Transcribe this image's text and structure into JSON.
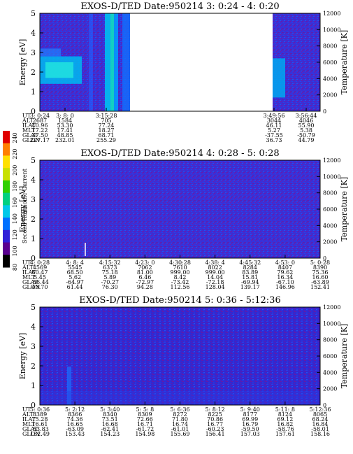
{
  "chart_data": [
    {
      "type": "heatmap",
      "title": "EXOS-D/TED   Date:950214  3: 0:24 - 4: 0:20",
      "ylabel": "Energy [eV]",
      "y2label": "Temperature [K]",
      "ylim": [
        0,
        5
      ],
      "y2lim": [
        0,
        12000
      ],
      "yticks": [
        "0",
        "1",
        "2",
        "3",
        "4",
        "5"
      ],
      "y2ticks": [
        "0",
        "2000",
        "4000",
        "6000",
        "8000",
        "10000",
        "12000"
      ],
      "data_gap": [
        "3:15:28",
        "3:49:56"
      ],
      "rows": [
        "UT",
        "ALT",
        "ILAT",
        "MLT",
        "GLAT",
        "GLON"
      ],
      "columns": [
        [
          "3: 0:24",
          "2687",
          "40.96",
          "17.22",
          "37.50",
          "227.17"
        ],
        [
          "3: 8: 0",
          "1584",
          "53.30",
          "17.41",
          "48.85",
          "232.01"
        ],
        [
          "3:15:28",
          "705",
          "77.24",
          "18.27",
          "68.71",
          "255.29"
        ],
        [
          "3:49:56",
          "3044",
          "46.11",
          "5.27",
          "-37.55",
          "36.73"
        ],
        [
          "3:56:44",
          "4046",
          "55.90",
          "5.38",
          "-50.79",
          "44.79"
        ]
      ]
    },
    {
      "type": "heatmap",
      "title": "EXOS-D/TED   Date:950214  4: 0:28 - 5: 0:28",
      "ylabel": "Energy [eV]",
      "y2label": "Temperature [K]",
      "ylim": [
        0,
        5
      ],
      "y2lim": [
        0,
        12000
      ],
      "yticks": [
        "0",
        "1",
        "2",
        "3",
        "4",
        "5"
      ],
      "y2ticks": [
        "0",
        "2000",
        "4000",
        "6000",
        "8000",
        "10000",
        "12000"
      ],
      "rows": [
        "UT",
        "ALT",
        "ILAT",
        "MLT",
        "GLAT",
        "GLON"
      ],
      "columns": [
        [
          "4: 0:28",
          "4569",
          "60.47",
          "5.45",
          "-56.44",
          "49.70"
        ],
        [
          "4: 8: 4",
          "5545",
          "68.50",
          "5.62",
          "-64.97",
          "61.44"
        ],
        [
          "4:15:32",
          "6373",
          "75.18",
          "5.89",
          "-70.27",
          "76.30"
        ],
        [
          "4:23: 0",
          "7062",
          "81.00",
          "6.46",
          "-72.97",
          "94.28"
        ],
        [
          "4:30:28",
          "7610",
          "999.00",
          "8.42",
          "-73.42",
          "112.56"
        ],
        [
          "4:38: 4",
          "8022",
          "999.00",
          "14.04",
          "-72.18",
          "128.04"
        ],
        [
          "4:45:32",
          "8284",
          "83.89",
          "15.81",
          "-69.94",
          "139.17"
        ],
        [
          "4:53: 0",
          "8407",
          "79.62",
          "16.34",
          "-67.10",
          "146.96"
        ],
        [
          "5: 0:28",
          "8390",
          "75.36",
          "16.60",
          "-63.89",
          "152.41"
        ]
      ]
    },
    {
      "type": "heatmap",
      "title": "EXOS-D/TED   Date:950214  5: 0:36 - 5:12:36",
      "ylabel": "Energy [eV]",
      "y2label": "Temperature [K]",
      "ylim": [
        0,
        5
      ],
      "y2lim": [
        0,
        12000
      ],
      "yticks": [
        "0",
        "1",
        "2",
        "3",
        "4",
        "5"
      ],
      "y2ticks": [
        "0",
        "2000",
        "4000",
        "6000",
        "8000",
        "10000",
        "12000"
      ],
      "rows": [
        "UT",
        "ALT",
        "ILAT",
        "MLT",
        "GLAT",
        "GLON"
      ],
      "columns": [
        [
          "5: 0:36",
          "8389",
          "75.28",
          "16.61",
          "-63.83",
          "152.49"
        ],
        [
          "5: 2:12",
          "8366",
          "74.36",
          "16.65",
          "-63.09",
          "153.43"
        ],
        [
          "5: 3:40",
          "8340",
          "73.51",
          "16.68",
          "-62.41",
          "154.23"
        ],
        [
          "5: 5: 8",
          "8309",
          "72.66",
          "16.71",
          "-61.72",
          "154.98"
        ],
        [
          "5: 6:36",
          "8272",
          "71.80",
          "16.74",
          "-61.01",
          "155.69"
        ],
        [
          "5: 8:12",
          "8225",
          "70.86",
          "16.77",
          "-60.23",
          "156.41"
        ],
        [
          "5: 9:40",
          "8177",
          "69.99",
          "16.79",
          "-59.50",
          "157.03"
        ],
        [
          "5:11: 8",
          "8124",
          "69.12",
          "16.82",
          "-58.76",
          "157.61"
        ],
        [
          "5:12:36",
          "8065",
          "68.24",
          "16.84",
          "-58.01",
          "158.16"
        ]
      ]
    }
  ],
  "colorbar": {
    "label": "Second Harmonic Current",
    "ticks": [
      "80",
      "100",
      "120",
      "140",
      "160",
      "180",
      "200",
      "220",
      "240"
    ],
    "colors": [
      "#000000",
      "#5a0090",
      "#3020d8",
      "#0070ff",
      "#00c8e8",
      "#00d080",
      "#30d000",
      "#c8e000",
      "#ffe000",
      "#ff8000",
      "#e00000"
    ]
  }
}
